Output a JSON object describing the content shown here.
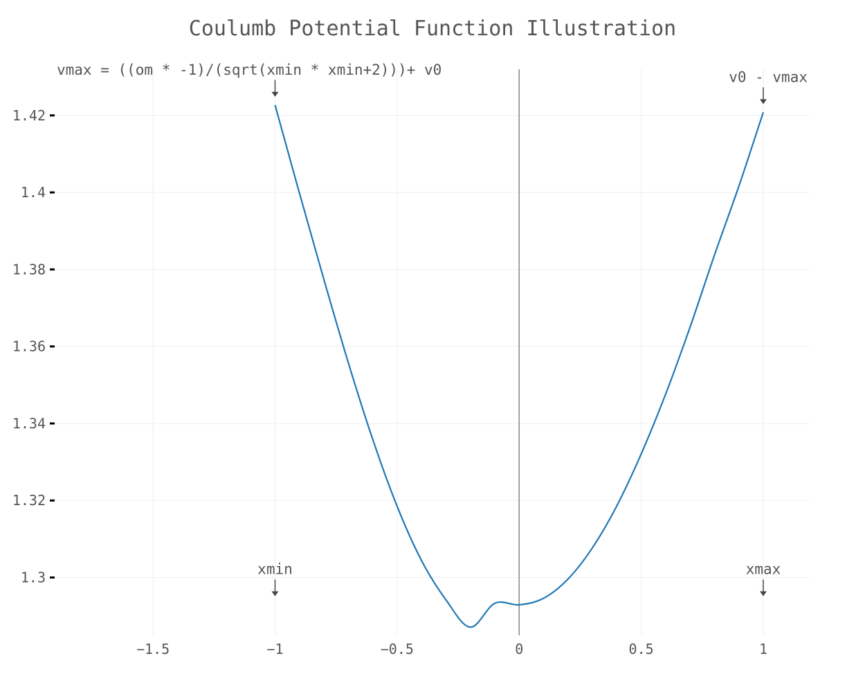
{
  "chart_data": {
    "type": "line",
    "title": "Coulumb Potential Function Illustration",
    "xlabel": "",
    "ylabel": "",
    "xlim": [
      -1.9,
      1.19
    ],
    "ylim": [
      1.285,
      1.432
    ],
    "x_ticks": [
      -1.5,
      -1,
      -0.5,
      0,
      0.5,
      1
    ],
    "x_tick_labels": [
      "−1.5",
      "−1",
      "−0.5",
      "0",
      "0.5",
      "1"
    ],
    "y_ticks": [
      1.3,
      1.32,
      1.34,
      1.36,
      1.38,
      1.4,
      1.42
    ],
    "y_tick_labels": [
      "1.3",
      "1.32",
      "1.34",
      "1.36",
      "1.38",
      "1.4",
      "1.42"
    ],
    "grid": true,
    "vertical_line_x": 0,
    "series": [
      {
        "color": "#1f77b4",
        "x": [
          -1,
          -0.9,
          -0.8,
          -0.7,
          -0.6,
          -0.5,
          -0.4,
          -0.3,
          -0.2,
          -0.1,
          0,
          0.1,
          0.2,
          0.3,
          0.4,
          0.5,
          0.6,
          0.7,
          0.8,
          0.9,
          1
        ],
        "y": [
          1.4227,
          1.3998,
          1.3774,
          1.3558,
          1.3359,
          1.3185,
          1.3044,
          1.2942,
          1.2871,
          1.2933,
          1.2929,
          1.2946,
          1.2996,
          1.3077,
          1.3186,
          1.3321,
          1.3476,
          1.365,
          1.3837,
          1.4016,
          1.4208
        ]
      }
    ],
    "annotations": [
      {
        "text": "vmax = ((om * -1)/(sqrt(xmin * xmin+2)))+ v0",
        "x": -1,
        "y": 1.4227
      },
      {
        "text": "v0 - vmax",
        "x": 1,
        "y": 1.4208
      },
      {
        "text": "xmin",
        "x": -1,
        "y": 1.293
      },
      {
        "text": "xmax",
        "x": 1,
        "y": 1.293
      }
    ]
  }
}
